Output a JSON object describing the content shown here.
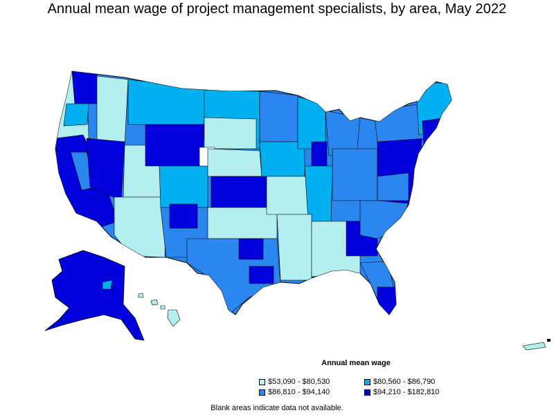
{
  "title": "Annual mean wage of project management specialists, by area, May 2022",
  "legend": {
    "title": "Annual mean wage",
    "items": [
      {
        "label": "$53,090 - $80,530",
        "color": "#b3eef0"
      },
      {
        "label": "$80,560 - $86,790",
        "color": "#00b0f0"
      },
      {
        "label": "$86,810 - $94,140",
        "color": "#2c86f0"
      },
      {
        "label": "$94,210 - $182,810",
        "color": "#0000dd"
      }
    ]
  },
  "note": "Blank areas indicate data not available.",
  "colors": {
    "blank": "#ffffff",
    "border": "#000000"
  }
}
